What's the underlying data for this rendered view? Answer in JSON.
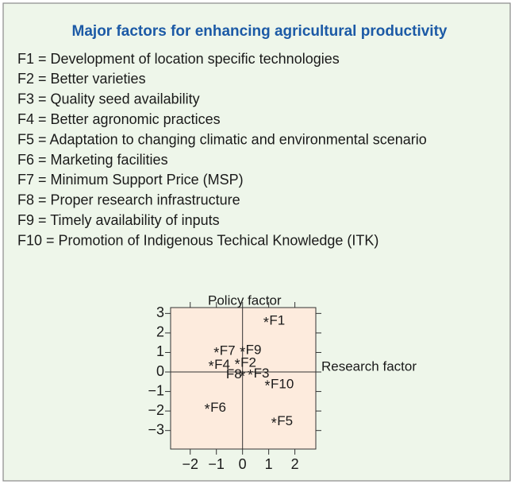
{
  "chart_data": {
    "type": "scatter",
    "title": "Major factors for enhancing agricultural productivity",
    "legend_items": [
      "F1 = Development of location specific technologies",
      "F2 = Better varieties",
      "F3 = Quality seed availability",
      "F4 = Better agronomic practices",
      "F5 = Adaptation to changing climatic and environmental scenario",
      "F6 = Marketing facilities",
      "F7 = Minimum Support Price (MSP)",
      "F8 = Proper research infrastructure",
      "F9 = Timely availability of inputs",
      "F10 = Promotion of Indigenous Techical Knowledge (ITK)"
    ],
    "y_label": "Policy factor",
    "x_label": "Research factor",
    "point_labels": [
      "F1",
      "F2",
      "F3",
      "F4",
      "F5",
      "F6",
      "F7",
      "F8",
      "F9",
      "F10"
    ],
    "x": [
      0.9,
      -0.2,
      0.3,
      -1.2,
      1.2,
      -1.35,
      -1.0,
      0.0,
      0.0,
      0.95
    ],
    "y": [
      2.6,
      0.45,
      -0.1,
      0.35,
      -2.55,
      -1.85,
      1.05,
      -0.15,
      1.1,
      -0.65
    ],
    "xlim": [
      -2.75,
      2.8
    ],
    "ylim": [
      -3.95,
      3.3
    ],
    "xticks": [
      {
        "value": -2,
        "label": "−2"
      },
      {
        "value": -1,
        "label": "−1"
      },
      0,
      1,
      2
    ],
    "yticks": [
      3,
      2,
      1,
      0,
      {
        "value": -1,
        "label": "−1"
      },
      {
        "value": -2,
        "label": "−2"
      },
      {
        "value": -3,
        "label": "−3"
      }
    ],
    "plot_color": "#fdebdd",
    "background_color": "#eef6ea"
  }
}
